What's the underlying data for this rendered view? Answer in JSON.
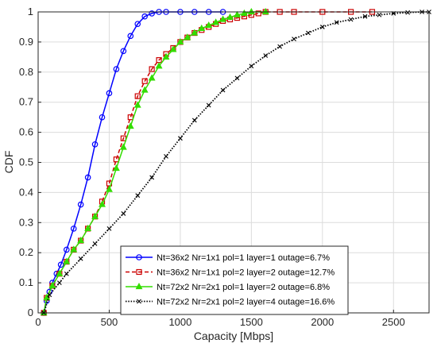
{
  "chart_data": {
    "type": "line",
    "xlabel": "Capacity [Mbps]",
    "ylabel": "CDF",
    "xlim": [
      0,
      2750
    ],
    "ylim": [
      0,
      1
    ],
    "xticks": [
      0,
      500,
      1000,
      1500,
      2000,
      2500
    ],
    "yticks": [
      0,
      0.1,
      0.2,
      0.3,
      0.4,
      0.5,
      0.6,
      0.7,
      0.8,
      0.9,
      1
    ],
    "grid": true,
    "legend_position": "bottom-right",
    "series": [
      {
        "name": "Nt=36x2 Nr=1x1 pol=1 layer=1 outage=6.7%",
        "color": "#0000ff",
        "line_style": "solid",
        "marker": "circle",
        "x": [
          40,
          60,
          80,
          100,
          130,
          160,
          200,
          250,
          300,
          350,
          400,
          450,
          500,
          550,
          600,
          650,
          700,
          750,
          800,
          850,
          900,
          1000,
          1100,
          1200,
          1300
        ],
        "y": [
          0,
          0.04,
          0.07,
          0.1,
          0.13,
          0.16,
          0.21,
          0.28,
          0.36,
          0.45,
          0.56,
          0.65,
          0.73,
          0.81,
          0.87,
          0.92,
          0.96,
          0.985,
          0.995,
          1,
          1,
          1,
          1,
          1,
          1
        ]
      },
      {
        "name": "Nt=36x2 Nr=1x1 pol=2 layer=2 outage=12.7%",
        "color": "#cc0000",
        "line_style": "dashed",
        "marker": "square",
        "x": [
          40,
          60,
          100,
          150,
          200,
          250,
          300,
          350,
          400,
          450,
          500,
          550,
          600,
          650,
          700,
          750,
          800,
          850,
          900,
          950,
          1000,
          1050,
          1100,
          1150,
          1200,
          1250,
          1300,
          1350,
          1400,
          1450,
          1500,
          1550,
          1600,
          1700,
          1800,
          2000,
          2200,
          2350
        ],
        "y": [
          0,
          0.05,
          0.09,
          0.13,
          0.17,
          0.21,
          0.24,
          0.28,
          0.32,
          0.37,
          0.43,
          0.51,
          0.58,
          0.65,
          0.72,
          0.77,
          0.81,
          0.84,
          0.86,
          0.88,
          0.9,
          0.915,
          0.93,
          0.94,
          0.95,
          0.96,
          0.97,
          0.975,
          0.98,
          0.985,
          0.99,
          0.995,
          1,
          1,
          1,
          1,
          1,
          1
        ]
      },
      {
        "name": "Nt=72x2 Nr=2x1 pol=1 layer=2 outage=6.8%",
        "color": "#33dd00",
        "line_style": "solid",
        "marker": "triangle",
        "x": [
          40,
          60,
          100,
          150,
          200,
          250,
          300,
          350,
          400,
          450,
          500,
          550,
          600,
          650,
          700,
          750,
          800,
          850,
          900,
          950,
          1000,
          1050,
          1100,
          1150,
          1200,
          1250,
          1300,
          1350,
          1400,
          1450,
          1500,
          1600
        ],
        "y": [
          0,
          0.05,
          0.09,
          0.13,
          0.17,
          0.21,
          0.24,
          0.28,
          0.32,
          0.36,
          0.41,
          0.48,
          0.55,
          0.62,
          0.69,
          0.74,
          0.78,
          0.82,
          0.85,
          0.875,
          0.9,
          0.915,
          0.93,
          0.945,
          0.955,
          0.965,
          0.975,
          0.982,
          0.99,
          0.995,
          1,
          1
        ]
      },
      {
        "name": "Nt=72x2 Nr=2x1 pol=2 layer=4 outage=16.6%",
        "color": "#000000",
        "line_style": "dotted",
        "marker": "x",
        "x": [
          40,
          80,
          150,
          200,
          300,
          400,
          500,
          600,
          700,
          800,
          900,
          1000,
          1100,
          1200,
          1300,
          1400,
          1500,
          1600,
          1700,
          1800,
          1900,
          2000,
          2100,
          2200,
          2300,
          2400,
          2500,
          2600,
          2700,
          2750
        ],
        "y": [
          0,
          0.06,
          0.1,
          0.13,
          0.18,
          0.23,
          0.28,
          0.33,
          0.39,
          0.45,
          0.52,
          0.58,
          0.64,
          0.69,
          0.74,
          0.78,
          0.82,
          0.855,
          0.885,
          0.91,
          0.93,
          0.95,
          0.965,
          0.975,
          0.985,
          0.99,
          0.995,
          0.998,
          1,
          1
        ]
      }
    ]
  }
}
